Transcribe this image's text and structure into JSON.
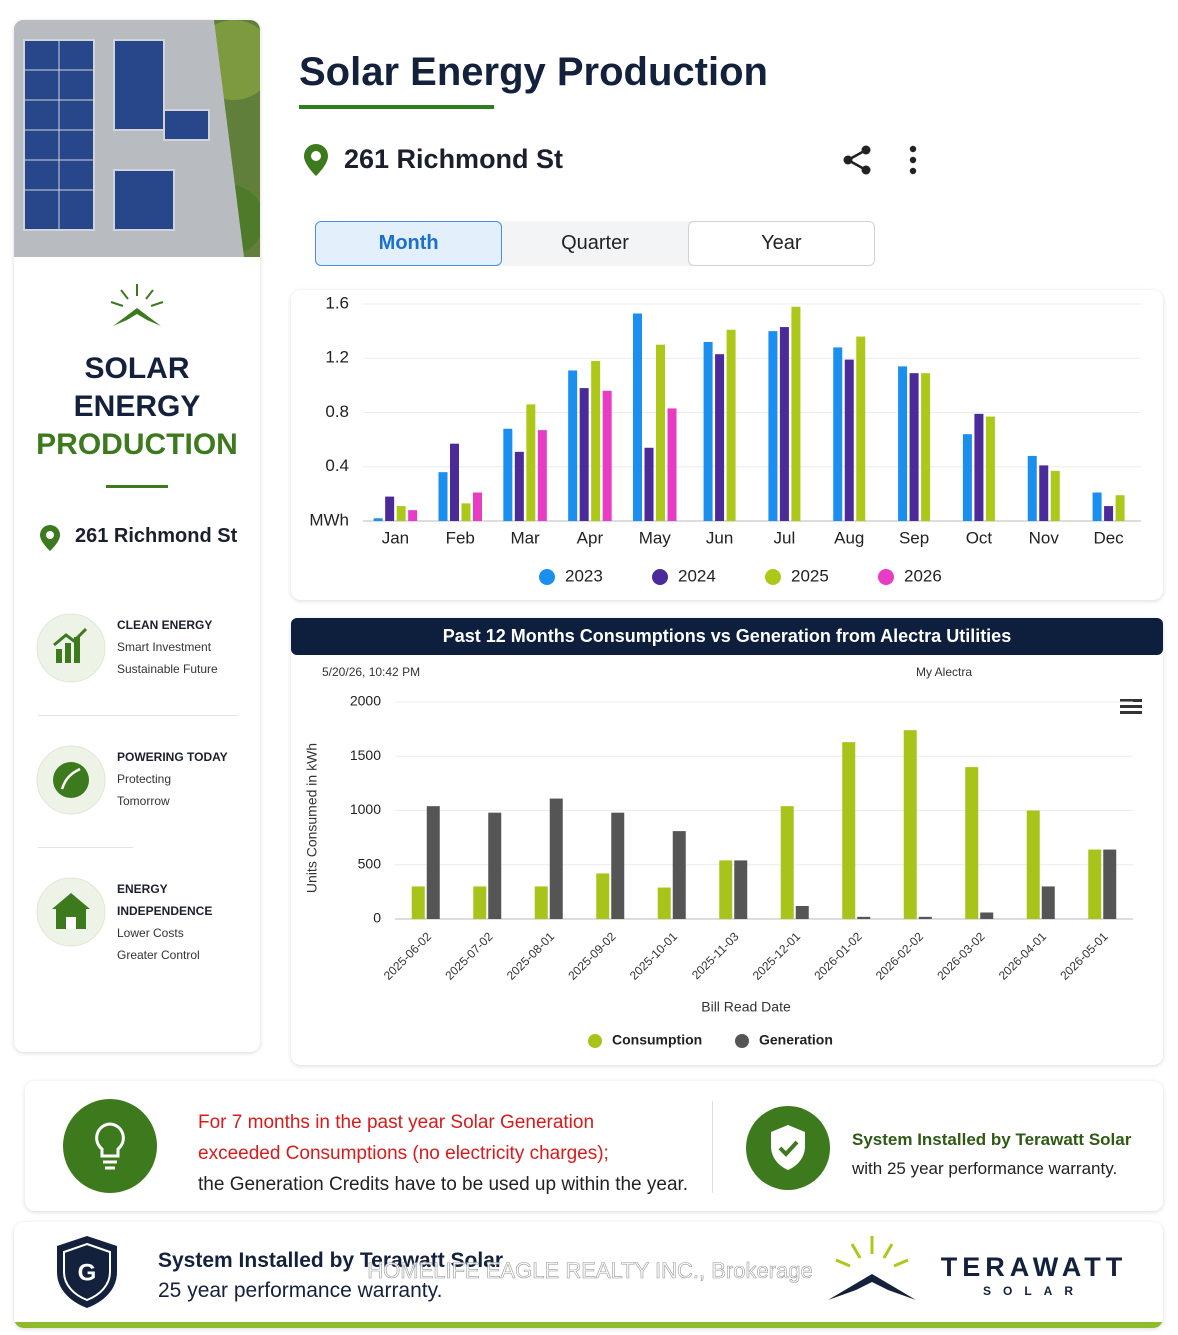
{
  "sidebar": {
    "title_lines": [
      "SOLAR",
      "ENERGY",
      "PRODUCTION"
    ],
    "address": "261 Richmond St",
    "features": [
      {
        "title": "CLEAN ENERGY",
        "lines": [
          "Smart Investment",
          "Sustainable Future"
        ]
      },
      {
        "title": "POWERING TODAY",
        "lines": [
          "Protecting",
          "Tomorrow"
        ]
      },
      {
        "title": "ENERGY INDEPENDENCE",
        "lines": [
          "Lower Costs",
          "Greater Control"
        ]
      }
    ]
  },
  "header": {
    "title": "Solar Energy Production",
    "address": "261 Richmond St",
    "tabs": [
      "Month",
      "Quarter",
      "Year"
    ]
  },
  "chart_data": [
    {
      "type": "bar",
      "categories": [
        "Jan",
        "Feb",
        "Mar",
        "Apr",
        "May",
        "Jun",
        "Jul",
        "Aug",
        "Sep",
        "Oct",
        "Nov",
        "Dec"
      ],
      "series": [
        {
          "name": "2023",
          "color": "#1a8fef",
          "values": [
            0.02,
            0.36,
            0.68,
            1.11,
            1.53,
            1.32,
            1.4,
            1.28,
            1.14,
            0.64,
            0.48,
            0.21
          ]
        },
        {
          "name": "2024",
          "color": "#4b2a9a",
          "values": [
            0.18,
            0.57,
            0.51,
            0.98,
            0.54,
            1.23,
            1.43,
            1.19,
            1.09,
            0.79,
            0.41,
            0.11
          ]
        },
        {
          "name": "2025",
          "color": "#aec81a",
          "values": [
            0.11,
            0.13,
            0.86,
            1.18,
            1.3,
            1.41,
            1.58,
            1.36,
            1.09,
            0.77,
            0.37,
            0.19
          ]
        },
        {
          "name": "2026",
          "color": "#e83cc4",
          "values": [
            0.08,
            0.21,
            0.67,
            0.96,
            0.83,
            null,
            null,
            null,
            null,
            null,
            null,
            null
          ]
        }
      ],
      "ylim": [
        0,
        1.6
      ],
      "yticks": [
        {
          "value": 0,
          "label": "MWh"
        },
        0.4,
        0.8,
        1.2,
        1.6
      ],
      "grid": true
    },
    {
      "type": "bar",
      "title": "Past 12 Months Consumptions vs Generation from Alectra Utilities",
      "subtitle": "5/20/26, 10:42 PM",
      "credit": "My Alectra",
      "x_label": "Bill Read Date",
      "y_label": "Units Consumed in kWh",
      "categories": [
        "2025-06-02",
        "2025-07-02",
        "2025-08-01",
        "2025-09-02",
        "2025-10-01",
        "2025-11-03",
        "2025-12-01",
        "2026-01-02",
        "2026-02-02",
        "2026-03-02",
        "2026-04-01",
        "2026-05-01"
      ],
      "series": [
        {
          "name": "Consumption",
          "color": "#a8c41a",
          "values": [
            300,
            300,
            300,
            420,
            290,
            540,
            1040,
            1630,
            1740,
            1400,
            1000,
            640
          ]
        },
        {
          "name": "Generation",
          "color": "#555555",
          "values": [
            1040,
            980,
            1110,
            980,
            810,
            540,
            120,
            20,
            20,
            60,
            300,
            640
          ]
        }
      ],
      "ylim": [
        0,
        2000
      ],
      "yticks": [
        0,
        500,
        1000,
        1500,
        2000
      ],
      "grid": true
    }
  ],
  "notice": {
    "lines": [
      "For 7 months in the past year Solar Generation",
      "exceeded Consumptions (no electricity charges);",
      "the Generation Credits have to be used up within the year."
    ],
    "warranty": [
      "System Installed by Terawatt Solar",
      "with 25 year performance warranty."
    ]
  },
  "footer": {
    "lines": [
      "System Installed by Terawatt Solar",
      "25 year performance warranty."
    ],
    "watermark": "HOMELIFE EAGLE REALTY INC., Brokerage",
    "brand": "TERAWATT",
    "brand_sub": "SOLAR"
  }
}
